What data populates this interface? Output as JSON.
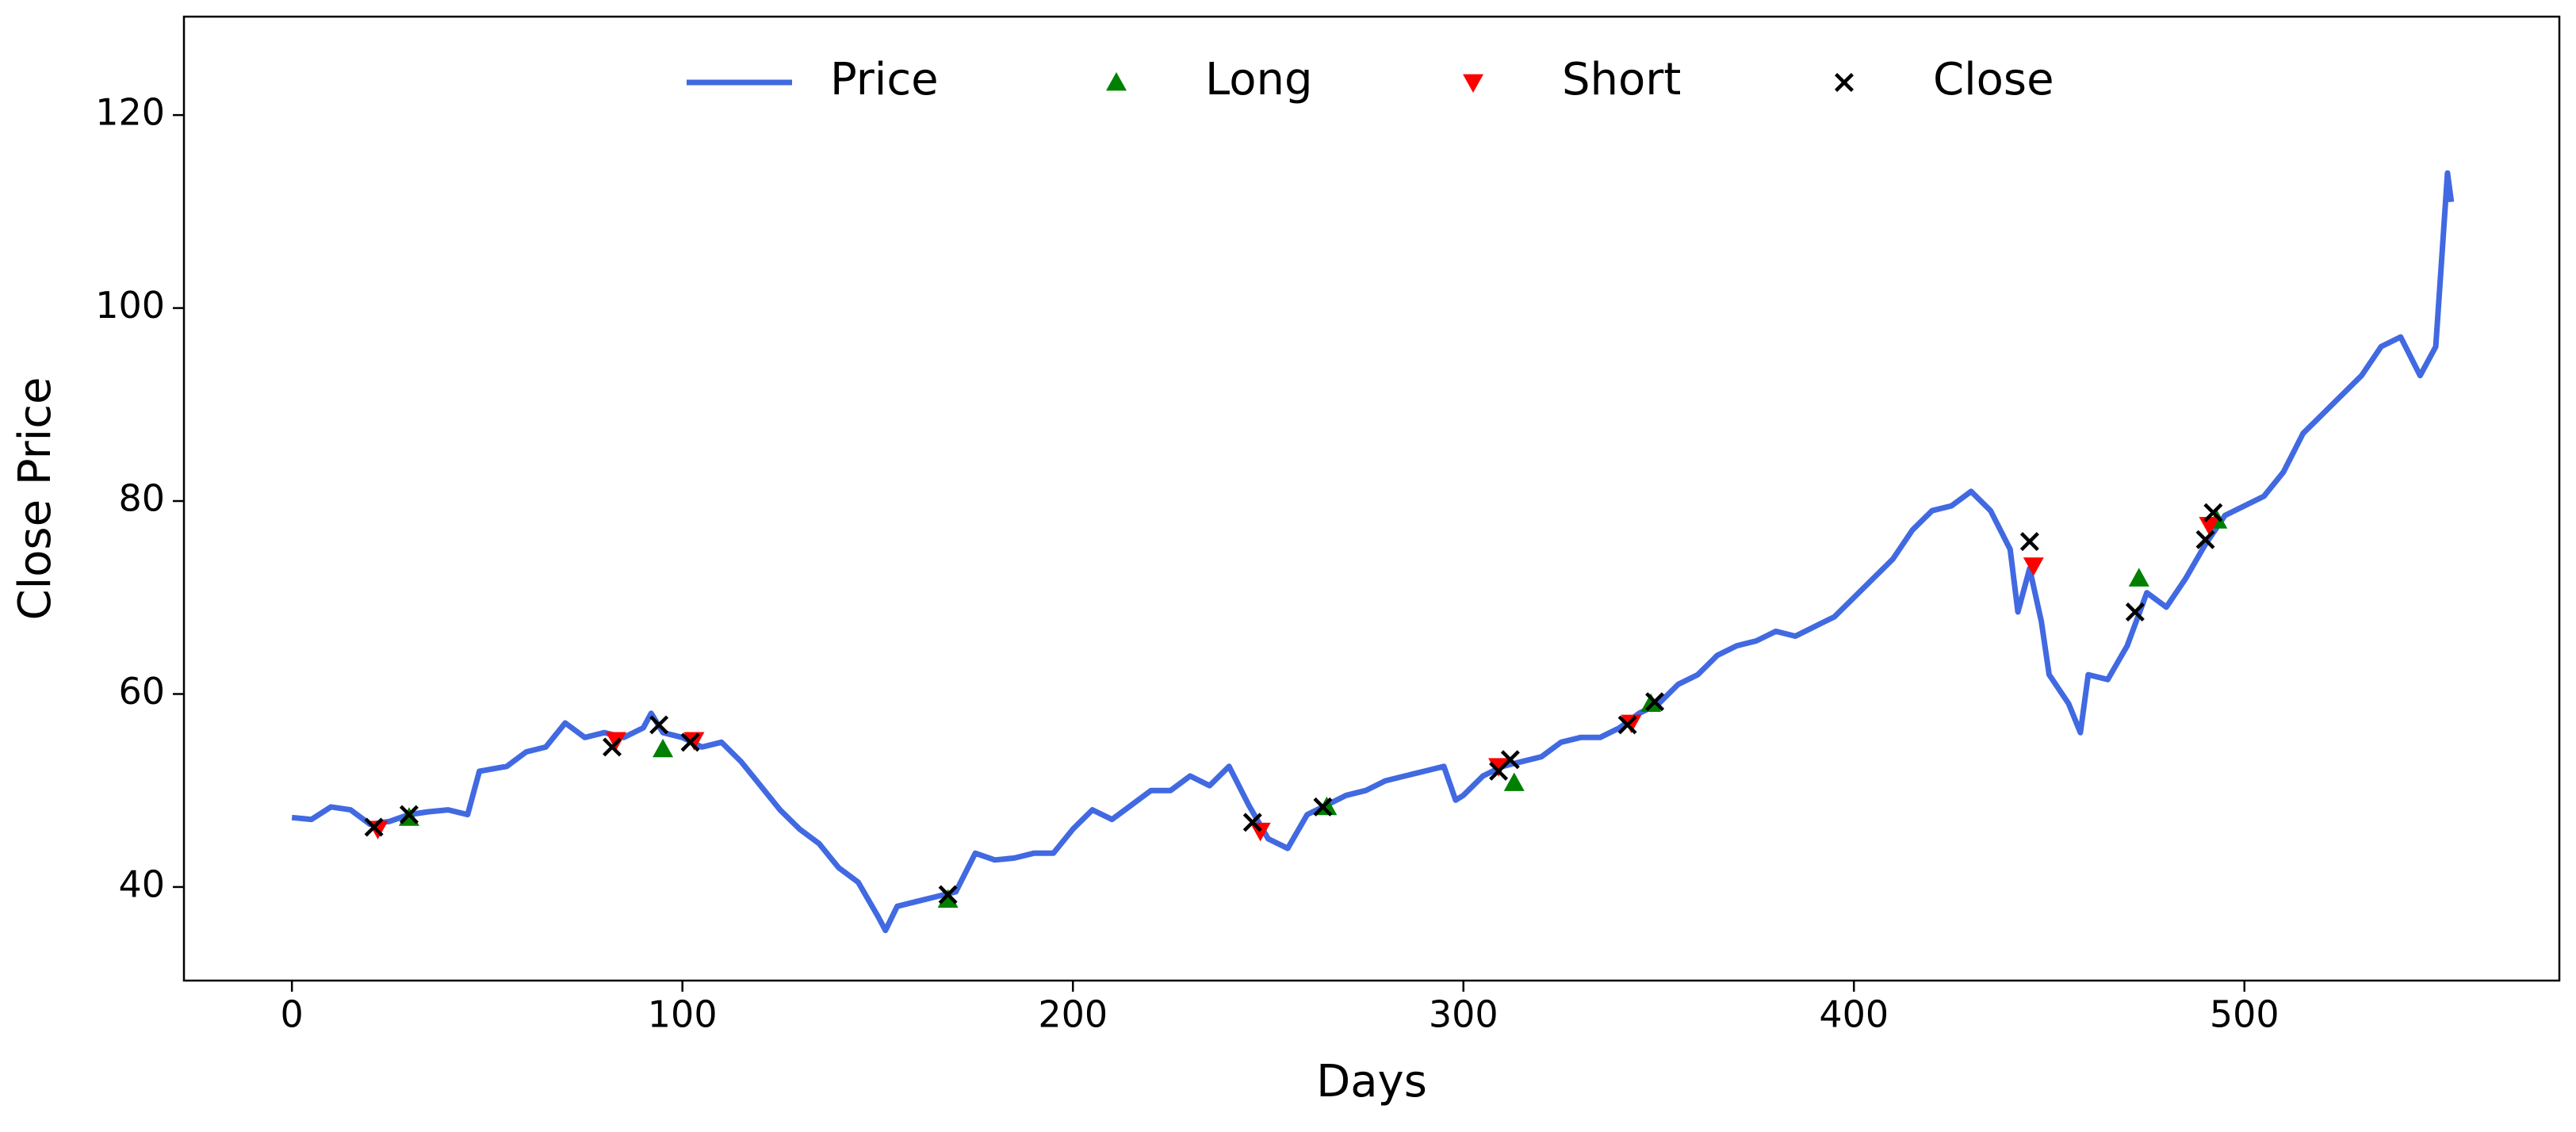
{
  "chart_data": {
    "type": "line",
    "xlabel": "Days",
    "ylabel": "Close Price",
    "xlim": [
      -27.65,
      580.65
    ],
    "ylim": [
      30.3,
      130.2
    ],
    "xticks": [
      0,
      100,
      200,
      300,
      400,
      500
    ],
    "yticks": [
      40,
      60,
      80,
      100,
      120
    ],
    "legend": "upper center",
    "x": [
      0,
      5,
      10,
      15,
      20,
      25,
      30,
      35,
      40,
      45,
      48,
      55,
      60,
      65,
      70,
      75,
      80,
      85,
      90,
      92,
      95,
      100,
      105,
      110,
      115,
      120,
      125,
      130,
      135,
      140,
      145,
      150,
      152,
      155,
      160,
      165,
      170,
      175,
      180,
      185,
      190,
      195,
      200,
      205,
      210,
      215,
      220,
      225,
      230,
      235,
      240,
      245,
      250,
      255,
      260,
      265,
      270,
      275,
      280,
      285,
      290,
      295,
      298,
      300,
      305,
      310,
      315,
      320,
      325,
      330,
      335,
      340,
      345,
      350,
      355,
      360,
      365,
      370,
      375,
      380,
      385,
      390,
      395,
      400,
      405,
      410,
      415,
      420,
      425,
      430,
      435,
      440,
      442,
      445,
      448,
      450,
      455,
      458,
      460,
      465,
      470,
      475,
      480,
      485,
      490,
      495,
      500,
      505,
      510,
      515,
      520,
      525,
      530,
      535,
      540,
      545,
      549,
      551,
      552,
      553
    ],
    "series": [
      {
        "name": "Price",
        "color": "#4169e1",
        "marker": "line",
        "values": [
          47.2,
          47,
          48.3,
          48,
          46.5,
          46.8,
          47.5,
          47.8,
          48,
          47.5,
          52,
          52.5,
          54,
          54.5,
          57,
          55.5,
          56,
          55.5,
          56.5,
          58,
          56,
          55.5,
          54.5,
          55,
          53,
          50.5,
          48,
          46,
          44.5,
          42,
          40.5,
          37,
          35.5,
          38,
          38.5,
          39,
          39.5,
          43.5,
          42.8,
          43,
          43.5,
          43.5,
          46,
          48,
          47,
          48.5,
          50,
          50,
          51.5,
          50.5,
          52.5,
          48.5,
          45,
          44,
          47.5,
          48.5,
          49.5,
          50,
          51,
          51.5,
          52,
          52.5,
          49,
          49.5,
          51.5,
          52.5,
          53,
          53.5,
          55,
          55.5,
          55.5,
          56.5,
          58,
          59,
          61,
          62,
          64,
          65,
          65.5,
          66.5,
          66,
          67,
          68,
          70,
          72,
          74,
          77,
          79,
          79.5,
          81,
          79,
          75,
          68.5,
          73,
          67.5,
          62,
          59,
          56,
          62,
          61.5,
          65,
          70.5,
          69,
          72,
          75.5,
          78.5,
          79.5,
          80.5,
          83,
          87,
          89,
          91,
          93,
          96,
          97,
          93,
          96,
          108,
          114,
          111
        ]
      },
      {
        "name": "Long",
        "color": "green",
        "marker": "triangle-up",
        "x": [
          30,
          95,
          168,
          265,
          313,
          348,
          473,
          493
        ],
        "values": [
          47.2,
          54.3,
          38.7,
          48.3,
          50.8,
          59,
          72,
          78
        ]
      },
      {
        "name": "Short",
        "color": "red",
        "marker": "triangle-down",
        "x": [
          22,
          83,
          103,
          248,
          309,
          343,
          446,
          491
        ],
        "values": [
          46,
          55.2,
          55.2,
          45.8,
          52.5,
          57,
          73.3,
          77.5
        ]
      },
      {
        "name": "Close",
        "color": "black",
        "marker": "x",
        "x": [
          21,
          30,
          82,
          94,
          102,
          168,
          246,
          264,
          309,
          312,
          342,
          349,
          445,
          472,
          490,
          492
        ],
        "values": [
          46.2,
          47.5,
          54.5,
          56.8,
          55,
          39.2,
          46.7,
          48.3,
          52,
          53.2,
          56.8,
          59.2,
          75.8,
          68.5,
          76,
          78.8
        ]
      }
    ]
  }
}
